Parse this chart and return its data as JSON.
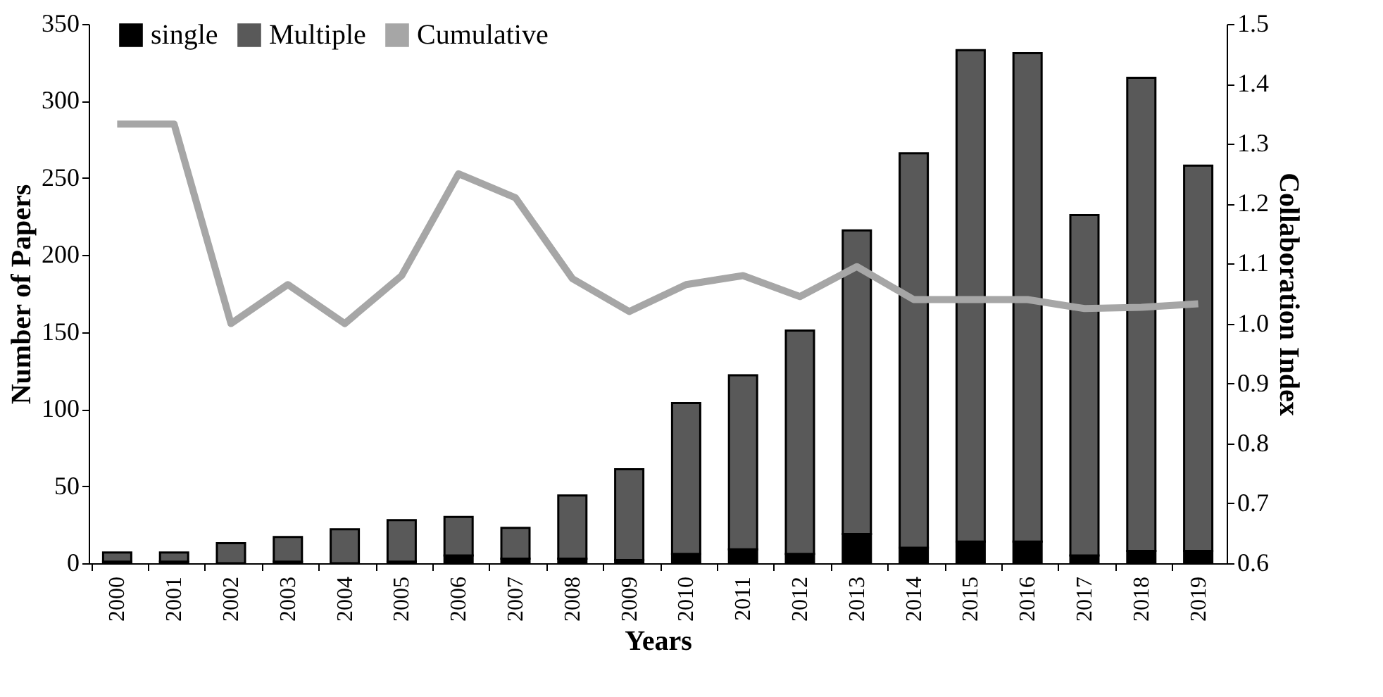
{
  "chart_data": {
    "type": "bar",
    "stacked": true,
    "xlabel": "Years",
    "ylabel": "Number of Papers",
    "y2label": "Collaboration Index",
    "categories": [
      "2000",
      "2001",
      "2002",
      "2003",
      "2004",
      "2005",
      "2006",
      "2007",
      "2008",
      "2009",
      "2010",
      "2011",
      "2012",
      "2013",
      "2014",
      "2015",
      "2016",
      "2017",
      "2018",
      "2019"
    ],
    "series": [
      {
        "name": "single",
        "color": "#000000",
        "values": [
          1,
          1,
          0,
          1,
          0,
          1,
          5,
          3,
          3,
          2,
          6,
          9,
          6,
          19,
          10,
          14,
          14,
          5,
          8,
          8
        ]
      },
      {
        "name": "Multiple",
        "color": "#595959",
        "values": [
          6,
          6,
          13,
          16,
          22,
          27,
          25,
          20,
          41,
          59,
          98,
          113,
          145,
          197,
          256,
          319,
          317,
          221,
          307,
          250
        ]
      },
      {
        "name": "Cumulative",
        "type": "line",
        "axis": "y2",
        "color": "#a6a6a6",
        "values": [
          1.333,
          1.333,
          1.0,
          1.065,
          1.0,
          1.08,
          1.25,
          1.21,
          1.075,
          1.02,
          1.065,
          1.08,
          1.045,
          1.095,
          1.04,
          1.04,
          1.04,
          1.025,
          1.027,
          1.033
        ]
      }
    ],
    "ylim": [
      0,
      350
    ],
    "yticks": [
      0,
      50,
      100,
      150,
      200,
      250,
      300,
      350
    ],
    "y2lim": [
      0.6,
      1.5
    ],
    "y2ticks": [
      0.6,
      0.7,
      0.8,
      0.9,
      {
        "value": 1.0,
        "label": "1.0"
      },
      1.1,
      1.2,
      1.3,
      1.4,
      1.5
    ],
    "legend": "top left",
    "grid": false
  }
}
